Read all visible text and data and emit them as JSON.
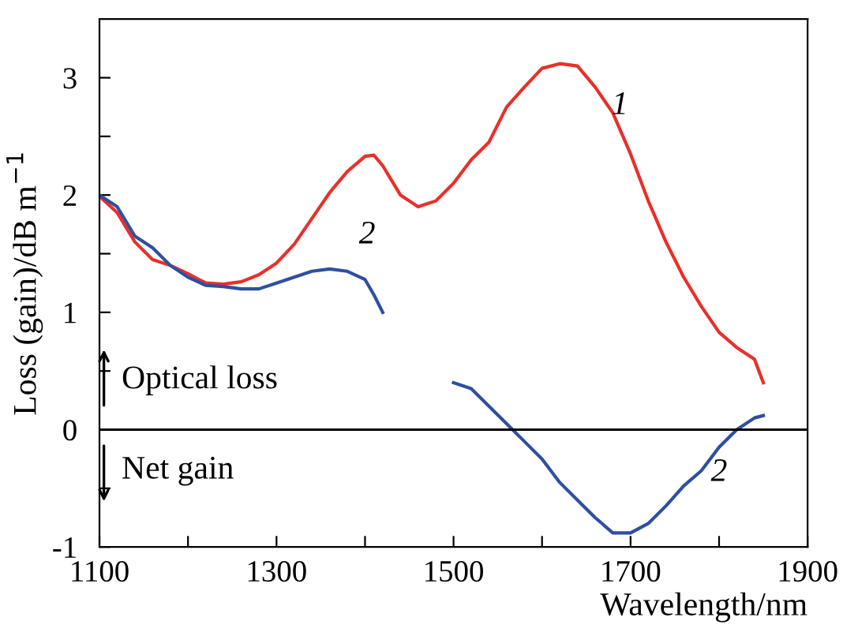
{
  "chart_data": {
    "type": "line",
    "xlabel": "Wavelength/nm",
    "ylabel": "Loss (gain)/dB m$^{−1}$",
    "xlim": [
      1100,
      1900
    ],
    "ylim": [
      -1,
      3.5
    ],
    "xticks": [
      1100,
      {
        "value": 1200,
        "label": null
      },
      1300,
      {
        "value": 1400,
        "label": null
      },
      1500,
      {
        "value": 1600,
        "label": null
      },
      1700,
      {
        "value": 1800,
        "label": null
      },
      1900
    ],
    "yticks": [
      -1,
      {
        "value": -0.5,
        "label": null
      },
      0,
      {
        "value": 0.5,
        "label": null
      },
      1,
      {
        "value": 1.5,
        "label": null
      },
      2,
      {
        "value": 2.5,
        "label": null
      },
      3
    ],
    "grid": false,
    "legend": false,
    "line_style": "solid",
    "marker": "none",
    "series": [
      {
        "color": "#e8302a",
        "x": [
          1100,
          1120,
          1140,
          1160,
          1180,
          1200,
          1220,
          1240,
          1260,
          1280,
          1300,
          1320,
          1340,
          1360,
          1380,
          1400,
          1410,
          1420,
          1440,
          1460,
          1480,
          1500,
          1520,
          1540,
          1560,
          1580,
          1600,
          1620,
          1640,
          1660,
          1680,
          1700,
          1720,
          1740,
          1760,
          1780,
          1800,
          1820,
          1840,
          1850
        ],
        "values": [
          1.99,
          1.85,
          1.6,
          1.45,
          1.4,
          1.33,
          1.25,
          1.24,
          1.26,
          1.32,
          1.42,
          1.58,
          1.8,
          2.02,
          2.2,
          2.33,
          2.34,
          2.25,
          2.0,
          1.9,
          1.95,
          2.1,
          2.3,
          2.45,
          2.75,
          2.92,
          3.08,
          3.12,
          3.1,
          2.92,
          2.7,
          2.35,
          1.95,
          1.6,
          1.3,
          1.05,
          0.83,
          0.7,
          0.6,
          0.4
        ]
      },
      {
        "color": "#2f4fa0",
        "x": [
          1100,
          1120,
          1140,
          1160,
          1180,
          1200,
          1220,
          1240,
          1260,
          1280,
          1300,
          1320,
          1340,
          1360,
          1380,
          1400,
          1410,
          1420,
          1460,
          1500,
          1520,
          1540,
          1560,
          1580,
          1600,
          1620,
          1640,
          1660,
          1680,
          1700,
          1720,
          1740,
          1760,
          1780,
          1800,
          1820,
          1840,
          1850
        ],
        "values": [
          2.0,
          1.9,
          1.65,
          1.55,
          1.4,
          1.3,
          1.23,
          1.22,
          1.2,
          1.2,
          1.25,
          1.3,
          1.35,
          1.37,
          1.35,
          1.28,
          1.15,
          1.0,
          null,
          0.4,
          0.35,
          0.2,
          0.05,
          -0.1,
          -0.25,
          -0.45,
          -0.6,
          -0.75,
          -0.88,
          -0.88,
          -0.8,
          -0.65,
          -0.48,
          -0.35,
          -0.15,
          0.0,
          0.1,
          0.12
        ]
      }
    ],
    "ref_lines": [
      {
        "axis": "y",
        "value": 0,
        "color": "#000000"
      }
    ],
    "annotations": [
      "1",
      "2",
      "2",
      "Optical loss",
      "Net gain"
    ]
  }
}
